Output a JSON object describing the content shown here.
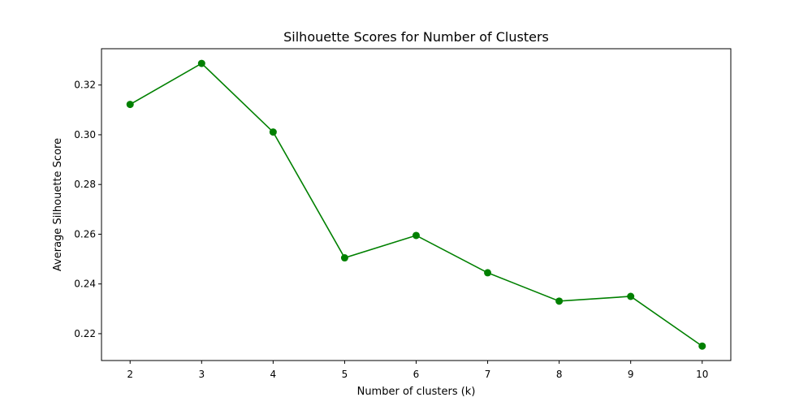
{
  "chart_data": {
    "type": "line",
    "title": "Silhouette Scores for Number of Clusters",
    "xlabel": "Number of clusters (k)",
    "ylabel": "Average Silhouette Score",
    "x": [
      2,
      3,
      4,
      5,
      6,
      7,
      8,
      9,
      10
    ],
    "series": [
      {
        "values": [
          0.3122,
          0.3287,
          0.3011,
          0.2505,
          0.2595,
          0.2445,
          0.2331,
          0.235,
          0.215
        ],
        "color": "#008000",
        "marker": "circle"
      }
    ],
    "xlim": [
      1.6,
      10.4
    ],
    "ylim": [
      0.2092,
      0.3346
    ],
    "xticks": [
      2,
      3,
      4,
      5,
      6,
      7,
      8,
      9,
      10
    ],
    "xtick_labels": [
      "2",
      "3",
      "4",
      "5",
      "6",
      "7",
      "8",
      "9",
      "10"
    ],
    "yticks": [
      0.22,
      0.24,
      0.26,
      0.28,
      0.3,
      0.32
    ],
    "ytick_labels": [
      "0.22",
      "0.24",
      "0.26",
      "0.28",
      "0.30",
      "0.32"
    ],
    "grid": false,
    "legend": "none"
  }
}
